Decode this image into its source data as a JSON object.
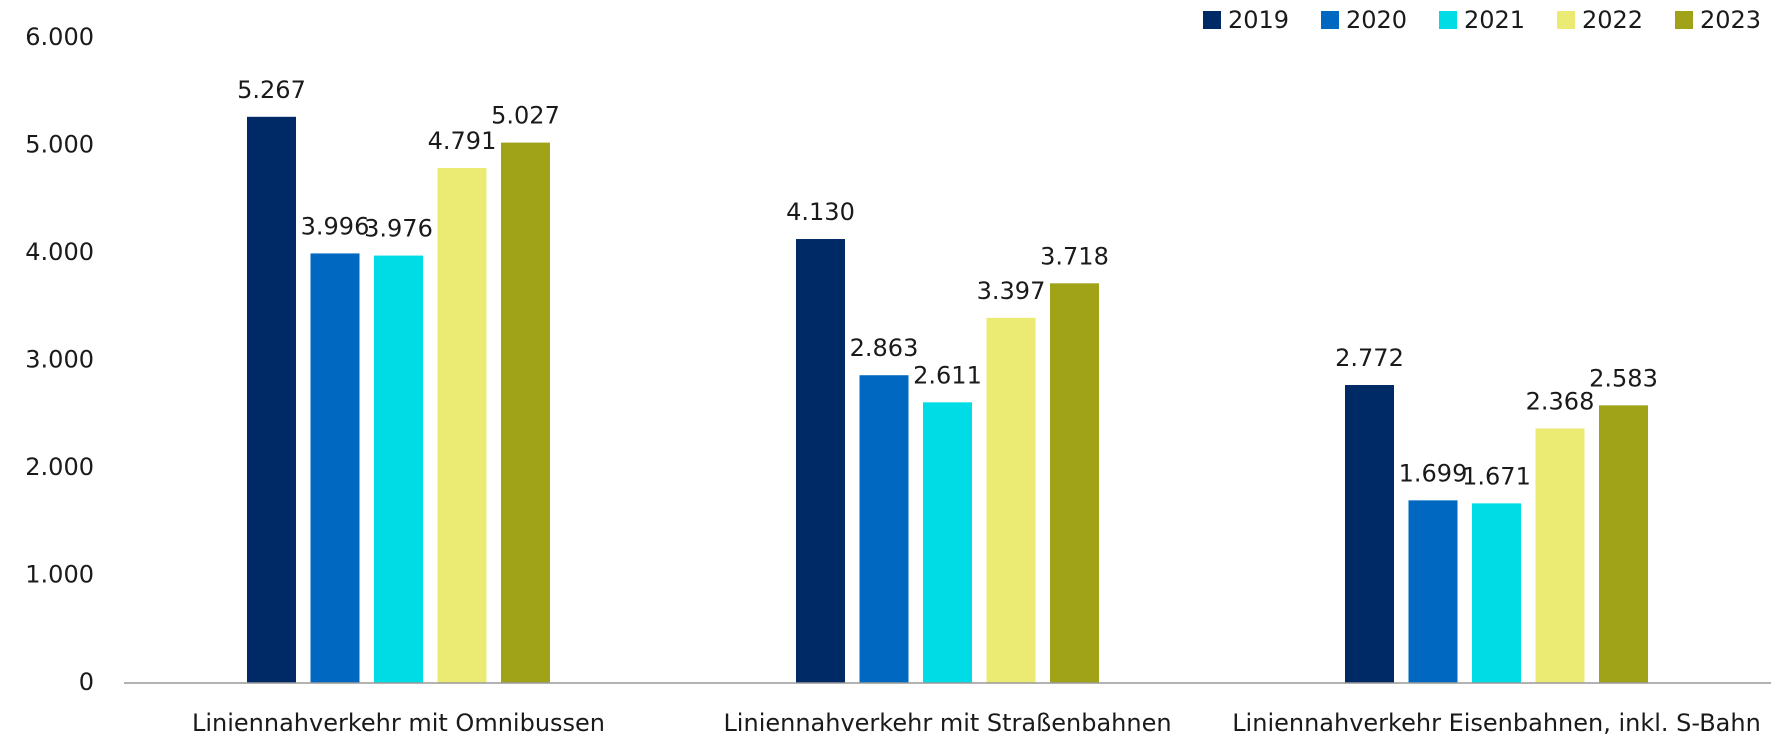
{
  "chart_data": {
    "type": "bar",
    "categories": [
      "Liniennahverkehr mit Omnibussen",
      "Liniennahverkehr mit Straßenbahnen",
      "Liniennahverkehr Eisenbahnen, inkl. S-Bahn"
    ],
    "series": [
      {
        "name": "2019",
        "color": "#002a65",
        "values": [
          5267,
          4130,
          2772
        ],
        "value_labels": [
          "5.267",
          "4.130",
          "2.772"
        ]
      },
      {
        "name": "2020",
        "color": "#0068c0",
        "values": [
          3996,
          2863,
          1699
        ],
        "value_labels": [
          "3.996",
          "2.863",
          "1.699"
        ]
      },
      {
        "name": "2021",
        "color": "#00dce6",
        "values": [
          3976,
          2611,
          1671
        ],
        "value_labels": [
          "3.976",
          "2.611",
          "1.671"
        ]
      },
      {
        "name": "2022",
        "color": "#ebeb73",
        "values": [
          4791,
          3397,
          2368
        ],
        "value_labels": [
          "4.791",
          "3.397",
          "2.368"
        ]
      },
      {
        "name": "2023",
        "color": "#a0a318",
        "values": [
          5027,
          3718,
          2583
        ],
        "value_labels": [
          "5.027",
          "3.718",
          "2.583"
        ]
      }
    ],
    "ylim": [
      0,
      6000
    ],
    "yticks": [
      0,
      {
        "value": 1000,
        "label": "1.000"
      },
      {
        "value": 2000,
        "label": "2.000"
      },
      {
        "value": 3000,
        "label": "3.000"
      },
      {
        "value": 4000,
        "label": "4.000"
      },
      {
        "value": 5000,
        "label": "5.000"
      },
      {
        "value": 6000,
        "label": "6.000"
      }
    ],
    "grid": false,
    "legend": "top-right"
  }
}
